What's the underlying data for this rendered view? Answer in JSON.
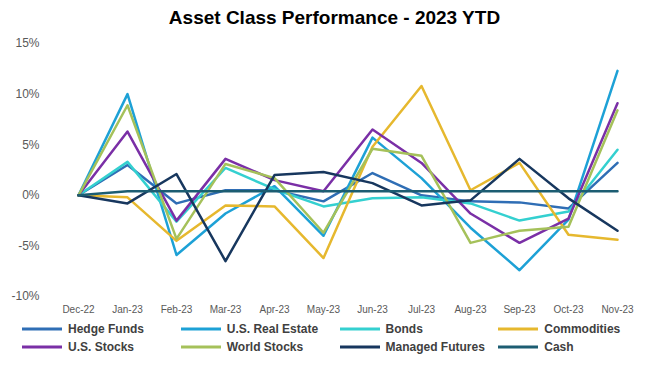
{
  "chart_data": {
    "type": "line",
    "title": "Asset Class Performance - 2023 YTD",
    "categories": [
      "Dec-22",
      "Jan-23",
      "Feb-23",
      "Mar-23",
      "Apr-23",
      "May-23",
      "Jun-23",
      "Jul-23",
      "Aug-23",
      "Sep-23",
      "Oct-23",
      "Nov-23"
    ],
    "series": [
      {
        "name": "Hedge Funds",
        "color": "#2F6EB5",
        "values": [
          0,
          3.0,
          -0.8,
          0.5,
          0.5,
          -0.6,
          2.2,
          0.0,
          -0.6,
          -0.7,
          -1.3,
          3.2
        ]
      },
      {
        "name": "U.S. Real Estate",
        "color": "#1DA1D6",
        "values": [
          0,
          10.0,
          -5.9,
          -1.8,
          0.9,
          -4.0,
          5.7,
          1.7,
          -3.2,
          -7.4,
          -2.4,
          12.3
        ]
      },
      {
        "name": "Bonds",
        "color": "#34D0D0",
        "values": [
          0,
          3.3,
          -2.6,
          2.7,
          0.6,
          -1.1,
          -0.3,
          -0.2,
          -0.8,
          -2.5,
          -1.6,
          4.5
        ]
      },
      {
        "name": "Commodities",
        "color": "#E6B82E",
        "values": [
          0,
          -0.2,
          -4.5,
          -1.0,
          -1.1,
          -6.2,
          4.8,
          10.8,
          0.5,
          3.2,
          -3.9,
          -4.4
        ]
      },
      {
        "name": "U.S. Stocks",
        "color": "#7A2FA6",
        "values": [
          0,
          6.3,
          -2.5,
          3.6,
          1.5,
          0.4,
          6.5,
          3.2,
          -1.8,
          -4.7,
          -2.3,
          9.1
        ]
      },
      {
        "name": "World Stocks",
        "color": "#A5C15A",
        "values": [
          0,
          8.9,
          -4.3,
          3.1,
          1.7,
          -3.7,
          4.6,
          3.9,
          -4.7,
          -3.5,
          -3.1,
          8.4
        ]
      },
      {
        "name": "Managed Futures",
        "color": "#17375E",
        "values": [
          0,
          -0.8,
          2.1,
          -6.5,
          2.0,
          2.3,
          1.2,
          -1.0,
          -0.5,
          3.6,
          -0.3,
          -3.5
        ]
      },
      {
        "name": "Cash",
        "color": "#1C5D72",
        "values": [
          0,
          0.4,
          0.4,
          0.4,
          0.4,
          0.4,
          0.4,
          0.4,
          0.4,
          0.4,
          0.4,
          0.4
        ]
      }
    ],
    "ylim": [
      -10,
      15
    ],
    "yticks": [
      {
        "value": -10,
        "label": "-10%"
      },
      {
        "value": -5,
        "label": "-5%"
      },
      {
        "value": 0,
        "label": "0%"
      },
      {
        "value": 5,
        "label": "5%"
      },
      {
        "value": 10,
        "label": "10%"
      },
      {
        "value": 15,
        "label": "15%"
      }
    ],
    "grid": false,
    "legend": "bottom"
  }
}
